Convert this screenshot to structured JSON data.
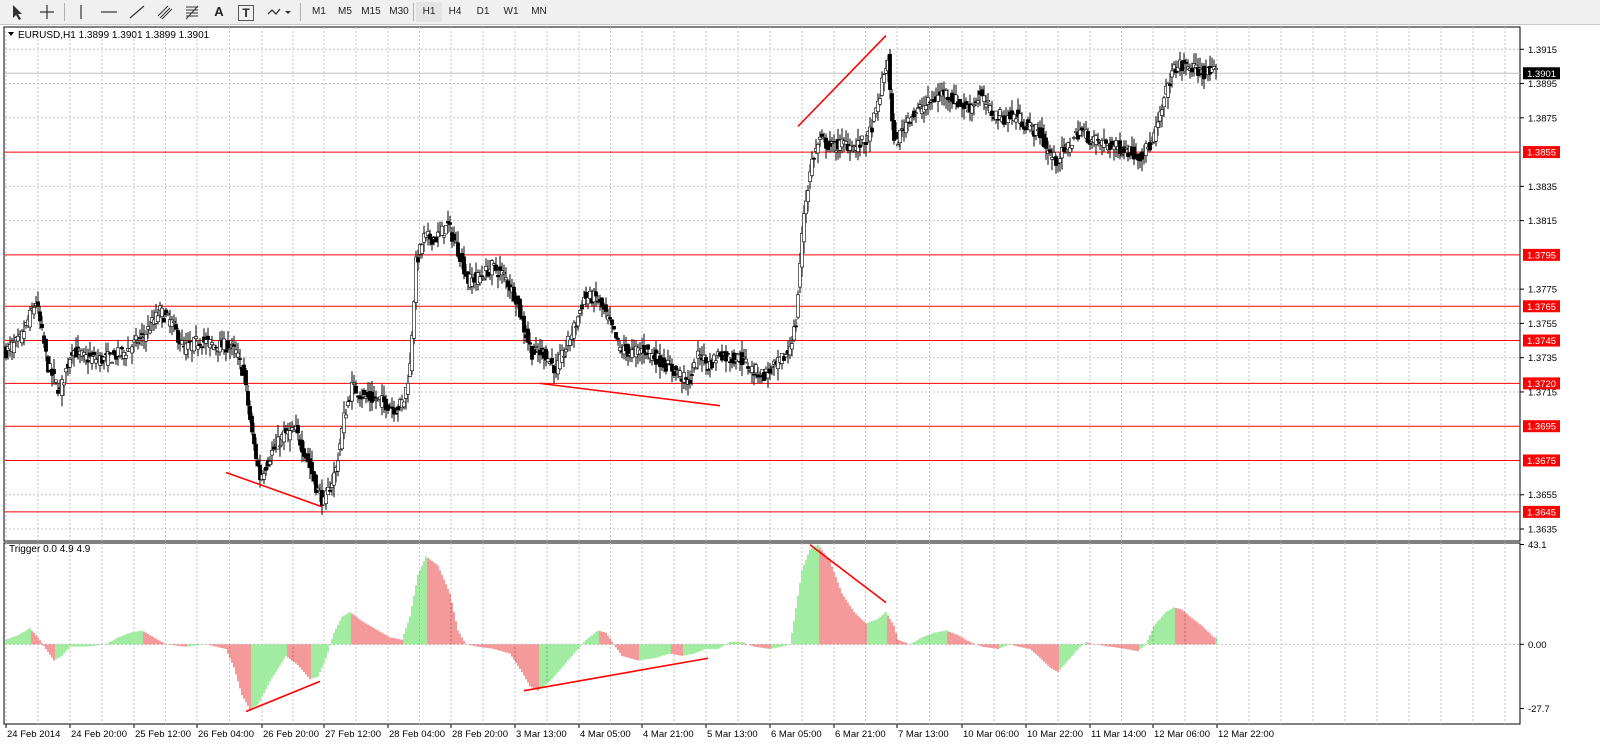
{
  "toolbar": {
    "tools": [
      {
        "name": "cursor-icon"
      },
      {
        "name": "crosshair-icon"
      },
      {
        "name": "vertical-line-icon"
      },
      {
        "name": "horizontal-line-icon"
      },
      {
        "name": "trendline-icon"
      },
      {
        "name": "equidistant-channel-icon"
      },
      {
        "name": "fibonacci-icon"
      },
      {
        "name": "text-tool-icon",
        "label": "A"
      },
      {
        "name": "text-label-icon",
        "label": "T"
      },
      {
        "name": "shapes-dropdown-icon"
      }
    ],
    "timeframes": [
      "M1",
      "M5",
      "M15",
      "M30",
      "H1",
      "H4",
      "D1",
      "W1",
      "MN"
    ]
  },
  "chart_data": [
    {
      "type": "candlestick",
      "title": "EURUSD,H1  1.3899 1.3901 1.3899 1.3901",
      "symbol": "EURUSD",
      "timeframe": "H1",
      "ohlc": {
        "open": 1.3899,
        "high": 1.3901,
        "low": 1.3899,
        "close": 1.3901
      },
      "current_price": "1.3901",
      "ylim": [
        1.3628,
        1.3928
      ],
      "y_ticks": [
        "1.3915",
        "1.3895",
        "1.3875",
        "1.3835",
        "1.3815",
        "1.3775",
        "1.3755",
        "1.3735",
        "1.3715",
        "1.3655",
        "1.3635"
      ],
      "horizontal_levels": [
        "1.3855",
        "1.3795",
        "1.3765",
        "1.3745",
        "1.3720",
        "1.3695",
        "1.3675",
        "1.3645"
      ],
      "x_ticks": [
        "24 Feb 2014",
        "24 Feb 20:00",
        "25 Feb 12:00",
        "26 Feb 04:00",
        "26 Feb 20:00",
        "27 Feb 12:00",
        "28 Feb 04:00",
        "28 Feb 20:00",
        "3 Mar 13:00",
        "4 Mar 05:00",
        "4 Mar 21:00",
        "5 Mar 13:00",
        "6 Mar 05:00",
        "6 Mar 21:00",
        "7 Mar 13:00",
        "10 Mar 06:00",
        "10 Mar 22:00",
        "11 Mar 14:00",
        "12 Mar 06:00",
        "12 Mar 22:00"
      ],
      "price_path": [
        [
          0,
          1.3738
        ],
        [
          8,
          1.3745
        ],
        [
          16,
          1.3768
        ],
        [
          22,
          1.373
        ],
        [
          28,
          1.3715
        ],
        [
          34,
          1.374
        ],
        [
          40,
          1.3735
        ],
        [
          50,
          1.3734
        ],
        [
          60,
          1.3738
        ],
        [
          70,
          1.3748
        ],
        [
          78,
          1.3762
        ],
        [
          84,
          1.3755
        ],
        [
          90,
          1.374
        ],
        [
          98,
          1.3745
        ],
        [
          106,
          1.3742
        ],
        [
          112,
          1.3742
        ],
        [
          116,
          1.3738
        ],
        [
          120,
          1.3725
        ],
        [
          124,
          1.369
        ],
        [
          128,
          1.3665
        ],
        [
          134,
          1.368
        ],
        [
          140,
          1.369
        ],
        [
          146,
          1.3692
        ],
        [
          152,
          1.3675
        ],
        [
          156,
          1.366
        ],
        [
          160,
          1.365
        ],
        [
          166,
          1.367
        ],
        [
          170,
          1.37
        ],
        [
          174,
          1.3718
        ],
        [
          180,
          1.3712
        ],
        [
          188,
          1.371
        ],
        [
          196,
          1.3705
        ],
        [
          200,
          1.371
        ],
        [
          203,
          1.373
        ],
        [
          206,
          1.379
        ],
        [
          210,
          1.3805
        ],
        [
          216,
          1.3805
        ],
        [
          222,
          1.3812
        ],
        [
          228,
          1.3795
        ],
        [
          232,
          1.378
        ],
        [
          238,
          1.3782
        ],
        [
          244,
          1.3788
        ],
        [
          250,
          1.3783
        ],
        [
          256,
          1.377
        ],
        [
          260,
          1.3752
        ],
        [
          264,
          1.3738
        ],
        [
          270,
          1.3738
        ],
        [
          276,
          1.3728
        ],
        [
          280,
          1.3738
        ],
        [
          286,
          1.3755
        ],
        [
          290,
          1.377
        ],
        [
          296,
          1.377
        ],
        [
          300,
          1.3762
        ],
        [
          304,
          1.3752
        ],
        [
          308,
          1.374
        ],
        [
          314,
          1.3738
        ],
        [
          320,
          1.374
        ],
        [
          326,
          1.3735
        ],
        [
          332,
          1.373
        ],
        [
          338,
          1.3725
        ],
        [
          342,
          1.372
        ],
        [
          348,
          1.3738
        ],
        [
          352,
          1.373
        ],
        [
          358,
          1.3738
        ],
        [
          362,
          1.3735
        ],
        [
          368,
          1.3735
        ],
        [
          374,
          1.3728
        ],
        [
          380,
          1.3725
        ],
        [
          386,
          1.373
        ],
        [
          392,
          1.3738
        ],
        [
          396,
          1.3755
        ],
        [
          398,
          1.379
        ],
        [
          400,
          1.382
        ],
        [
          404,
          1.385
        ],
        [
          408,
          1.3862
        ],
        [
          414,
          1.3858
        ],
        [
          420,
          1.386
        ],
        [
          426,
          1.3858
        ],
        [
          432,
          1.3863
        ],
        [
          436,
          1.3878
        ],
        [
          440,
          1.39
        ],
        [
          442,
          1.391
        ],
        [
          444,
          1.387
        ],
        [
          446,
          1.386
        ],
        [
          452,
          1.3875
        ],
        [
          458,
          1.388
        ],
        [
          464,
          1.3885
        ],
        [
          470,
          1.389
        ],
        [
          476,
          1.3885
        ],
        [
          482,
          1.388
        ],
        [
          488,
          1.3888
        ],
        [
          494,
          1.3878
        ],
        [
          500,
          1.3875
        ],
        [
          506,
          1.3876
        ],
        [
          512,
          1.387
        ],
        [
          518,
          1.3866
        ],
        [
          522,
          1.3855
        ],
        [
          526,
          1.385
        ],
        [
          532,
          1.3858
        ],
        [
          538,
          1.3868
        ],
        [
          544,
          1.3862
        ],
        [
          550,
          1.386
        ],
        [
          556,
          1.3858
        ],
        [
          562,
          1.3856
        ],
        [
          568,
          1.3853
        ],
        [
          574,
          1.386
        ],
        [
          578,
          1.3875
        ],
        [
          582,
          1.3895
        ],
        [
          586,
          1.3905
        ],
        [
          592,
          1.3905
        ],
        [
          598,
          1.3902
        ],
        [
          604,
          1.3901
        ]
      ],
      "trendlines": [
        {
          "from": [
            110,
            1.3668
          ],
          "to": [
            158,
            1.3648
          ]
        },
        {
          "from": [
            267,
            1.372
          ],
          "to": [
            357,
            1.3707
          ]
        },
        {
          "from": [
            396,
            1.387
          ],
          "to": [
            440,
            1.3923
          ]
        }
      ]
    },
    {
      "type": "histogram",
      "title": "Trigger 0.0 4.9 4.9",
      "ylim": [
        -27.7,
        43.1
      ],
      "y_ticks": [
        "43.1",
        "0.00",
        "-27.7"
      ],
      "colors": {
        "positive": "#44d944",
        "negative": "#e83535"
      },
      "value_path": [
        [
          0,
          2
        ],
        [
          6,
          4
        ],
        [
          12,
          7
        ],
        [
          16,
          3
        ],
        [
          20,
          -2
        ],
        [
          24,
          -7
        ],
        [
          28,
          -5
        ],
        [
          32,
          -1
        ],
        [
          40,
          -1
        ],
        [
          50,
          0
        ],
        [
          56,
          3
        ],
        [
          62,
          5
        ],
        [
          68,
          6
        ],
        [
          74,
          3
        ],
        [
          80,
          0
        ],
        [
          90,
          -1
        ],
        [
          100,
          0
        ],
        [
          110,
          -2
        ],
        [
          114,
          -10
        ],
        [
          118,
          -22
        ],
        [
          122,
          -28
        ],
        [
          126,
          -26
        ],
        [
          132,
          -16
        ],
        [
          140,
          -5
        ],
        [
          146,
          -9
        ],
        [
          152,
          -15
        ],
        [
          156,
          -14
        ],
        [
          160,
          -6
        ],
        [
          164,
          5
        ],
        [
          168,
          12
        ],
        [
          172,
          14
        ],
        [
          178,
          10
        ],
        [
          186,
          6
        ],
        [
          192,
          3
        ],
        [
          198,
          2
        ],
        [
          202,
          12
        ],
        [
          206,
          30
        ],
        [
          210,
          38
        ],
        [
          216,
          34
        ],
        [
          222,
          22
        ],
        [
          226,
          6
        ],
        [
          230,
          0
        ],
        [
          236,
          -1
        ],
        [
          244,
          -2
        ],
        [
          252,
          -4
        ],
        [
          258,
          -12
        ],
        [
          262,
          -18
        ],
        [
          266,
          -20
        ],
        [
          272,
          -16
        ],
        [
          278,
          -10
        ],
        [
          284,
          -4
        ],
        [
          290,
          2
        ],
        [
          296,
          6
        ],
        [
          300,
          5
        ],
        [
          304,
          0
        ],
        [
          308,
          -5
        ],
        [
          316,
          -7
        ],
        [
          324,
          -6
        ],
        [
          332,
          -4
        ],
        [
          338,
          -5
        ],
        [
          344,
          -4
        ],
        [
          350,
          -2
        ],
        [
          356,
          -2
        ],
        [
          362,
          1
        ],
        [
          368,
          1
        ],
        [
          374,
          -1
        ],
        [
          382,
          -2
        ],
        [
          388,
          -1
        ],
        [
          392,
          0
        ],
        [
          394,
          10
        ],
        [
          398,
          32
        ],
        [
          402,
          41
        ],
        [
          406,
          43
        ],
        [
          412,
          36
        ],
        [
          418,
          22
        ],
        [
          424,
          14
        ],
        [
          430,
          9
        ],
        [
          436,
          11
        ],
        [
          440,
          14
        ],
        [
          444,
          8
        ],
        [
          446,
          2
        ],
        [
          452,
          0
        ],
        [
          458,
          3
        ],
        [
          464,
          5
        ],
        [
          470,
          6
        ],
        [
          476,
          4
        ],
        [
          482,
          1
        ],
        [
          488,
          -1
        ],
        [
          496,
          -2
        ],
        [
          502,
          0
        ],
        [
          506,
          -1
        ],
        [
          512,
          -2
        ],
        [
          516,
          -5
        ],
        [
          522,
          -10
        ],
        [
          526,
          -12
        ],
        [
          530,
          -8
        ],
        [
          536,
          -2
        ],
        [
          540,
          1
        ],
        [
          544,
          0
        ],
        [
          552,
          -1
        ],
        [
          560,
          -2
        ],
        [
          566,
          -3
        ],
        [
          570,
          0
        ],
        [
          574,
          8
        ],
        [
          580,
          14
        ],
        [
          584,
          16
        ],
        [
          588,
          15
        ],
        [
          592,
          12
        ],
        [
          598,
          8
        ],
        [
          604,
          3
        ]
      ],
      "trendlines": [
        {
          "from": [
            120,
            -29
          ],
          "to": [
            157,
            -16
          ]
        },
        {
          "from": [
            259,
            -20
          ],
          "to": [
            351,
            -6
          ]
        },
        {
          "from": [
            402,
            43
          ],
          "to": [
            440,
            18
          ]
        }
      ]
    }
  ]
}
